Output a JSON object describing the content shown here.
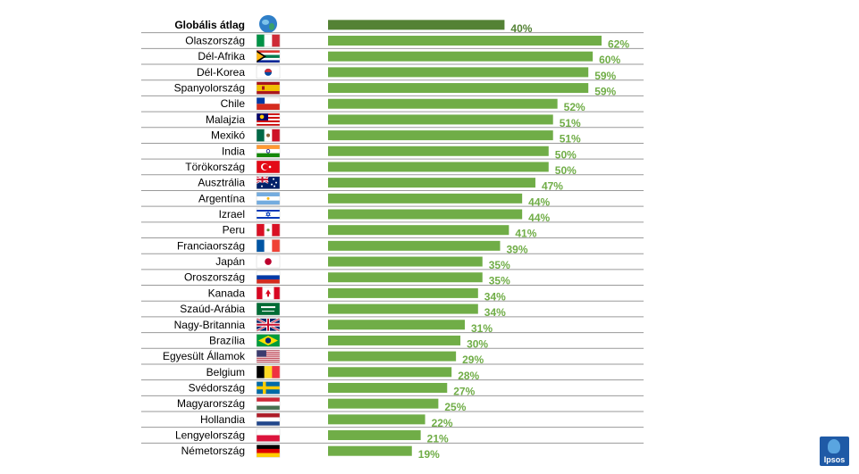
{
  "chart_data": {
    "type": "bar",
    "orientation": "horizontal",
    "xlim": [
      0,
      100
    ],
    "value_suffix": "%",
    "categories": [
      "Globális átlag",
      "Olaszország",
      "Dél-Afrika",
      "Dél-Korea",
      "Spanyolország",
      "Chile",
      "Malajzia",
      "Mexikó",
      "India",
      "Törökország",
      "Ausztrália",
      "Argentína",
      "Izrael",
      "Peru",
      "Franciaország",
      "Japán",
      "Oroszország",
      "Kanada",
      "Szaúd-Arábia",
      "Nagy-Britannia",
      "Brazília",
      "Egyesült Államok",
      "Belgium",
      "Svédország",
      "Magyarország",
      "Hollandia",
      "Lengyelország",
      "Németország"
    ],
    "values": [
      40,
      62,
      60,
      59,
      59,
      52,
      51,
      51,
      50,
      50,
      47,
      44,
      44,
      41,
      39,
      35,
      35,
      34,
      34,
      31,
      30,
      29,
      28,
      27,
      25,
      22,
      21,
      19
    ],
    "value_labels": [
      "40%",
      "62%",
      "60%",
      "59%",
      "59%",
      "52%",
      "51%",
      "51%",
      "50%",
      "50%",
      "47%",
      "44%",
      "44%",
      "41%",
      "39%",
      "35%",
      "35%",
      "34%",
      "34%",
      "31%",
      "30%",
      "29%",
      "28%",
      "27%",
      "25%",
      "22%",
      "21%",
      "19%"
    ],
    "flags": [
      "globe-icon",
      "flag-italy-icon",
      "flag-south-africa-icon",
      "flag-south-korea-icon",
      "flag-spain-icon",
      "flag-chile-icon",
      "flag-malaysia-icon",
      "flag-mexico-icon",
      "flag-india-icon",
      "flag-turkey-icon",
      "flag-australia-icon",
      "flag-argentina-icon",
      "flag-israel-icon",
      "flag-peru-icon",
      "flag-france-icon",
      "flag-japan-icon",
      "flag-russia-icon",
      "flag-canada-icon",
      "flag-saudi-arabia-icon",
      "flag-uk-icon",
      "flag-brazil-icon",
      "flag-usa-icon",
      "flag-belgium-icon",
      "flag-sweden-icon",
      "flag-hungary-icon",
      "flag-netherlands-icon",
      "flag-poland-icon",
      "flag-germany-icon"
    ],
    "highlight_index": 0,
    "grid": false,
    "legend": "none",
    "colors": {
      "bar": "#70ad47",
      "bar_highlight": "#548235",
      "value_label": "#70ad47",
      "value_label_highlight": "#548235"
    }
  },
  "logo": {
    "text": "Ipsos",
    "icon": "ipsos-logo-icon",
    "color": "#1f5aa6"
  }
}
